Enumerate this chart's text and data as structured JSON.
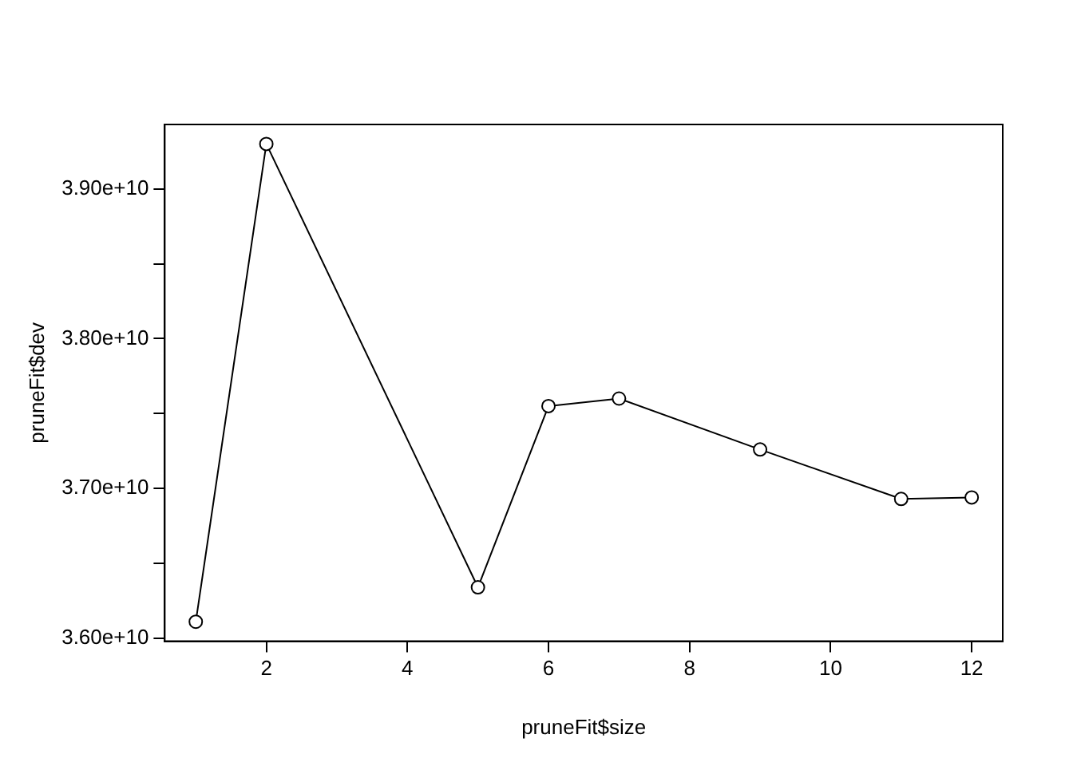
{
  "chart_data": {
    "type": "line",
    "xlabel": "pruneFit$size",
    "ylabel": "pruneFit$dev",
    "x": [
      1,
      2,
      5,
      6,
      7,
      9,
      11,
      12
    ],
    "series": [
      {
        "color": "#000000",
        "values": [
          36110000000,
          39300000000,
          36340000000,
          37550000000,
          37600000000,
          37260000000,
          36930000000,
          36940000000
        ]
      }
    ],
    "xlim": [
      0.56,
      12.44
    ],
    "xticks": [
      2,
      4,
      6,
      8,
      10,
      12
    ],
    "ylim": [
      35980000000,
      39430000000
    ],
    "yticks": [
      {
        "value": 36000000000,
        "label": "3.60e+10"
      },
      {
        "value": 36500000000,
        "label": null
      },
      {
        "value": 37000000000,
        "label": "3.70e+10"
      },
      {
        "value": 37500000000,
        "label": null
      },
      {
        "value": 38000000000,
        "label": "3.80e+10"
      },
      {
        "value": 38500000000,
        "label": null
      },
      {
        "value": 39000000000,
        "label": "3.90e+10"
      }
    ],
    "grid": false,
    "legend": false,
    "marker": "circle",
    "line_style": "solid"
  }
}
